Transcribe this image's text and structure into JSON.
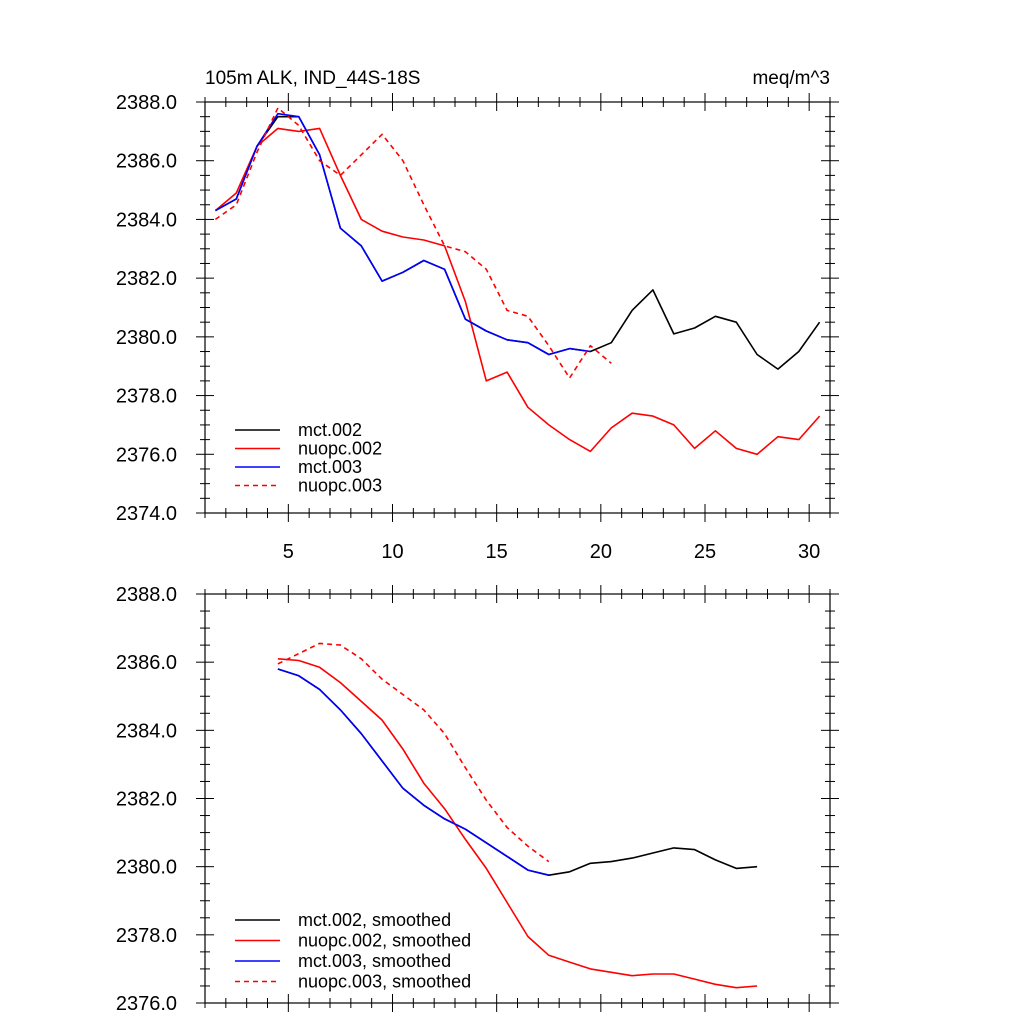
{
  "chart_data": [
    {
      "type": "line",
      "title": "105m ALK, IND_44S-18S",
      "units": "meq/m^3",
      "xlim": [
        1,
        31
      ],
      "ylim": [
        2374.0,
        2388.0
      ],
      "yticks": [
        "2374.0",
        "2376.0",
        "2378.0",
        "2380.0",
        "2382.0",
        "2384.0",
        "2386.0",
        "2388.0"
      ],
      "xticks": [
        "5",
        "10",
        "15",
        "20",
        "25",
        "30"
      ],
      "legend_position": "bottom-left",
      "series": [
        {
          "name": "mct.002",
          "color": "#000000",
          "dash": "solid",
          "x": [
            1.5,
            2.5,
            3.5,
            4.5,
            5.5,
            6.5,
            7.5,
            8.5,
            9.5,
            10.5,
            11.5,
            12.5,
            13.5,
            14.5,
            15.5,
            16.5,
            17.5,
            18.5,
            19.5,
            20.5,
            21.5,
            22.5,
            23.5,
            24.5,
            25.5,
            26.5,
            27.5,
            28.5,
            29.5,
            30.5
          ],
          "values": [
            2384.3,
            2384.7,
            2386.5,
            2387.5,
            2387.5,
            2386.2,
            2383.7,
            2383.1,
            2381.9,
            2382.2,
            2382.6,
            2382.3,
            2380.6,
            2380.2,
            2379.9,
            2379.8,
            2379.4,
            2379.6,
            2379.5,
            2379.8,
            2380.9,
            2381.6,
            2380.1,
            2380.3,
            2380.7,
            2380.5,
            2379.4,
            2378.9,
            2379.5,
            2380.5
          ]
        },
        {
          "name": "nuopc.002",
          "color": "#ff0000",
          "dash": "solid",
          "x": [
            1.5,
            2.5,
            3.5,
            4.5,
            5.5,
            6.5,
            7.5,
            8.5,
            9.5,
            10.5,
            11.5,
            12.5,
            13.5,
            14.5,
            15.5,
            16.5,
            17.5,
            18.5,
            19.5,
            20.5,
            21.5,
            22.5,
            23.5,
            24.5,
            25.5,
            26.5,
            27.5,
            28.5,
            29.5,
            30.5
          ],
          "values": [
            2384.3,
            2384.9,
            2386.5,
            2387.1,
            2387.0,
            2387.1,
            2385.5,
            2384.0,
            2383.6,
            2383.4,
            2383.3,
            2383.1,
            2381.2,
            2378.5,
            2378.8,
            2377.6,
            2377.0,
            2376.5,
            2376.1,
            2376.9,
            2377.4,
            2377.3,
            2377.0,
            2376.2,
            2376.8,
            2376.2,
            2376.0,
            2376.6,
            2376.5,
            2377.3
          ]
        },
        {
          "name": "mct.003",
          "color": "#0000ff",
          "dash": "solid",
          "x": [
            1.5,
            2.5,
            3.5,
            4.5,
            5.5,
            6.5,
            7.5,
            8.5,
            9.5,
            10.5,
            11.5,
            12.5,
            13.5,
            14.5,
            15.5,
            16.5,
            17.5,
            18.5,
            19.5
          ],
          "values": [
            2384.3,
            2384.7,
            2386.5,
            2387.6,
            2387.5,
            2386.2,
            2383.7,
            2383.1,
            2381.9,
            2382.2,
            2382.6,
            2382.3,
            2380.6,
            2380.2,
            2379.9,
            2379.8,
            2379.4,
            2379.6,
            2379.5
          ]
        },
        {
          "name": "nuopc.003",
          "color": "#ff0000",
          "dash": "dashed",
          "x": [
            1.5,
            2.5,
            3.5,
            4.5,
            5.5,
            6.5,
            7.5,
            8.5,
            9.5,
            10.5,
            11.5,
            12.5,
            13.5,
            14.5,
            15.5,
            16.5,
            17.5,
            18.5,
            19.5,
            20.5
          ],
          "values": [
            2384.0,
            2384.5,
            2386.3,
            2387.8,
            2387.2,
            2386.0,
            2385.5,
            2386.2,
            2386.9,
            2386.0,
            2384.5,
            2383.1,
            2382.9,
            2382.3,
            2380.9,
            2380.7,
            2379.7,
            2378.6,
            2379.7,
            2379.1
          ]
        }
      ]
    },
    {
      "type": "line",
      "title": "",
      "xlim": [
        1,
        31
      ],
      "ylim": [
        2376.0,
        2388.0
      ],
      "yticks": [
        "2376.0",
        "2378.0",
        "2380.0",
        "2382.0",
        "2384.0",
        "2386.0",
        "2388.0"
      ],
      "legend_position": "bottom-left",
      "series": [
        {
          "name": "mct.002, smoothed",
          "color": "#000000",
          "dash": "solid",
          "x": [
            4.5,
            5.5,
            6.5,
            7.5,
            8.5,
            9.5,
            10.5,
            11.5,
            12.5,
            13.5,
            14.5,
            15.5,
            16.5,
            17.5,
            18.5,
            19.5,
            20.5,
            21.5,
            22.5,
            23.5,
            24.5,
            25.5,
            26.5,
            27.5
          ],
          "values": [
            2385.8,
            2385.6,
            2385.2,
            2384.6,
            2383.9,
            2383.1,
            2382.3,
            2381.8,
            2381.4,
            2381.1,
            2380.7,
            2380.3,
            2379.9,
            2379.75,
            2379.85,
            2380.1,
            2380.15,
            2380.25,
            2380.4,
            2380.55,
            2380.5,
            2380.2,
            2379.95,
            2380.0
          ]
        },
        {
          "name": "nuopc.002, smoothed",
          "color": "#ff0000",
          "dash": "solid",
          "x": [
            4.5,
            5.5,
            6.5,
            7.5,
            8.5,
            9.5,
            10.5,
            11.5,
            12.5,
            13.5,
            14.5,
            15.5,
            16.5,
            17.5,
            18.5,
            19.5,
            20.5,
            21.5,
            22.5,
            23.5,
            24.5,
            25.5,
            26.5,
            27.5
          ],
          "values": [
            2386.1,
            2386.05,
            2385.85,
            2385.4,
            2384.85,
            2384.3,
            2383.45,
            2382.45,
            2381.7,
            2380.8,
            2379.95,
            2378.95,
            2377.95,
            2377.4,
            2377.2,
            2377.0,
            2376.9,
            2376.8,
            2376.85,
            2376.85,
            2376.7,
            2376.55,
            2376.45,
            2376.5
          ]
        },
        {
          "name": "mct.003, smoothed",
          "color": "#0000ff",
          "dash": "solid",
          "x": [
            4.5,
            5.5,
            6.5,
            7.5,
            8.5,
            9.5,
            10.5,
            11.5,
            12.5,
            13.5,
            14.5,
            15.5,
            16.5,
            17.5
          ],
          "values": [
            2385.8,
            2385.6,
            2385.2,
            2384.6,
            2383.9,
            2383.1,
            2382.3,
            2381.8,
            2381.4,
            2381.1,
            2380.7,
            2380.3,
            2379.9,
            2379.75
          ]
        },
        {
          "name": "nuopc.003, smoothed",
          "color": "#ff0000",
          "dash": "dashed",
          "x": [
            4.5,
            5.5,
            6.5,
            7.5,
            8.5,
            9.5,
            10.5,
            11.5,
            12.5,
            13.5,
            14.5,
            15.5,
            16.5,
            17.5
          ],
          "values": [
            2385.95,
            2386.25,
            2386.55,
            2386.5,
            2386.1,
            2385.5,
            2385.05,
            2384.6,
            2383.9,
            2382.9,
            2381.95,
            2381.15,
            2380.6,
            2380.15
          ]
        }
      ]
    }
  ]
}
